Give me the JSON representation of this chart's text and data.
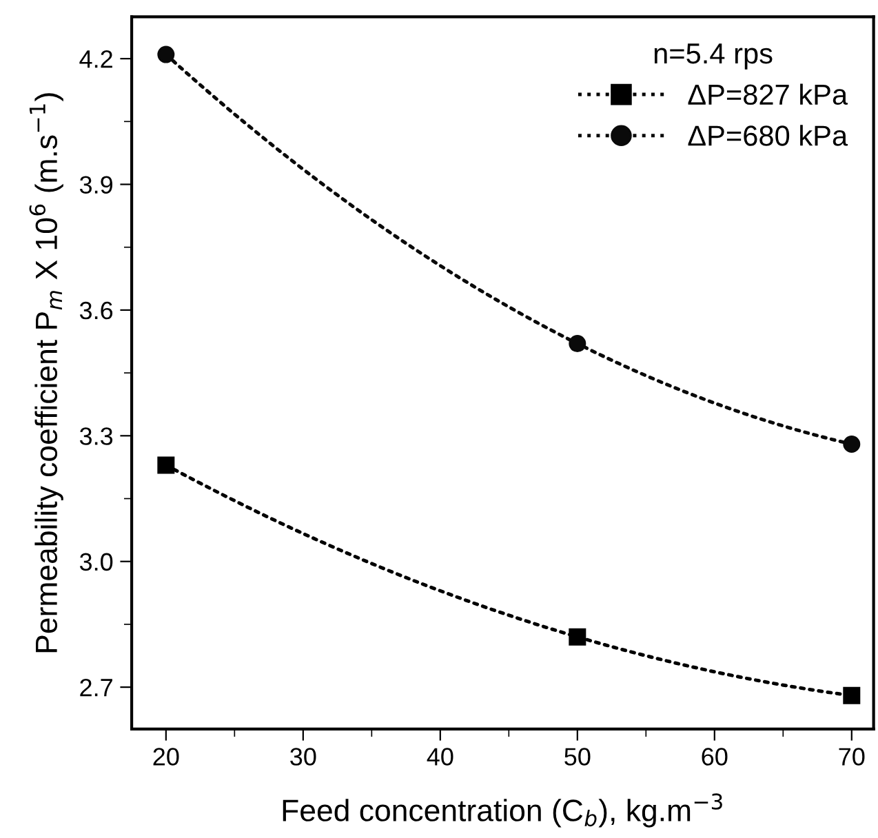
{
  "chart_data": {
    "type": "line",
    "xlabel": "Feed concentration (C$_{b}$), kg.m$^{−3}$",
    "ylabel": "Permeability coefficient P$_{m}$ X 10$^{6}$ (m.s$^{−1}$)",
    "legend_title": "n=5.4 rps",
    "legend": "top right",
    "line_style": "dotted",
    "grid": false,
    "x": [
      20,
      50,
      70
    ],
    "series": [
      {
        "name": "ΔP=827 kPa",
        "color": "#000000",
        "marker": "square",
        "values": [
          3.23,
          2.82,
          2.68
        ]
      },
      {
        "name": "ΔP=680 kPa",
        "color": "#0a0a0a",
        "marker": "circle",
        "values": [
          4.21,
          3.52,
          3.28
        ]
      }
    ],
    "xlim": [
      17.5,
      71.6
    ],
    "xticks": [
      20,
      30,
      40,
      50,
      60,
      70
    ],
    "ylim": [
      2.6,
      4.3
    ],
    "yticks": [
      2.7,
      {
        "value": 3.0,
        "label": "3.0"
      },
      3.3,
      3.6,
      3.9,
      4.2
    ]
  }
}
